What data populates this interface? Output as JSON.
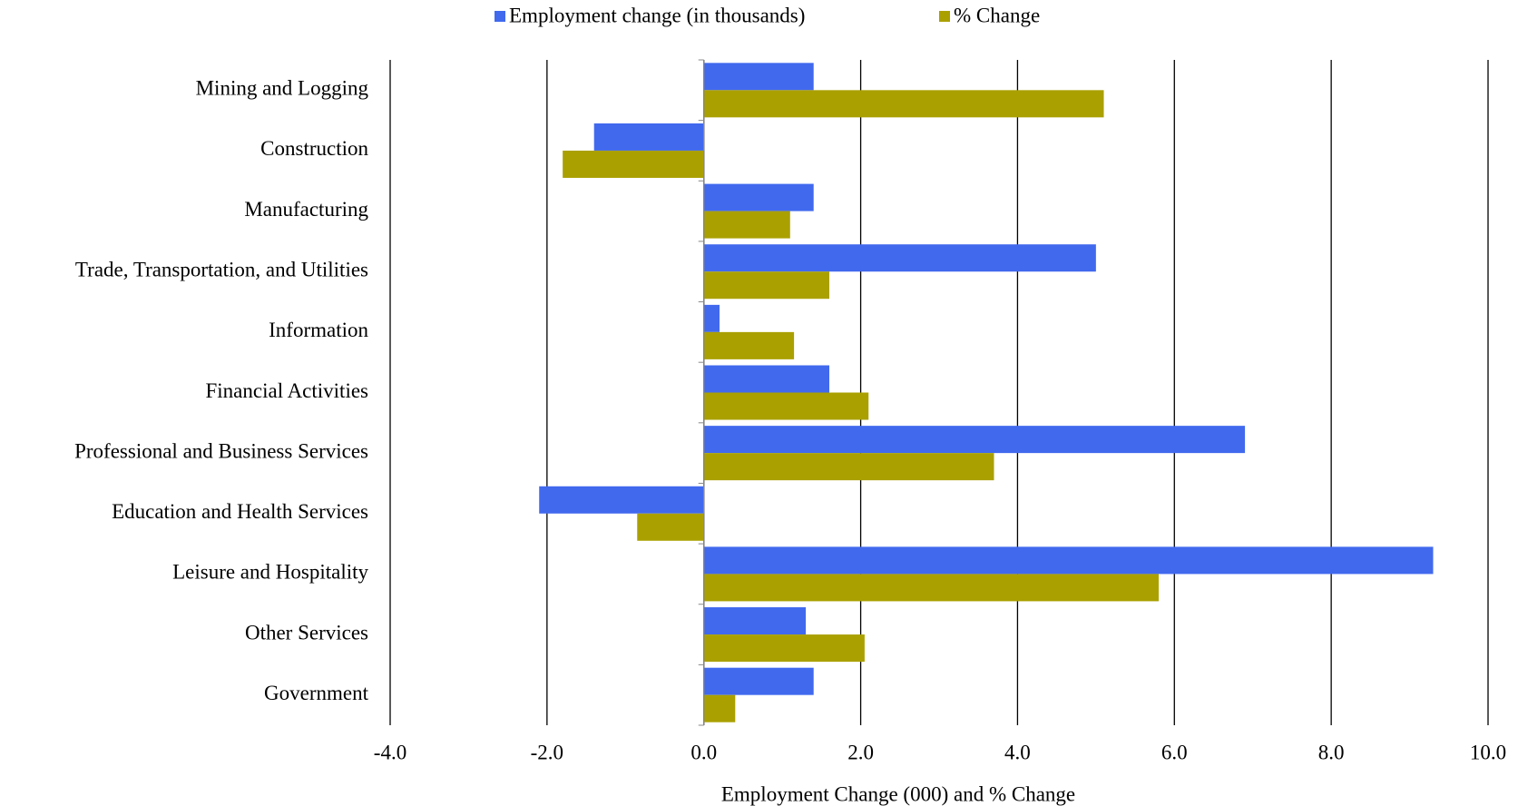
{
  "chart_data": {
    "type": "barh",
    "xlabel": "Employment  Change  (000) and % Change",
    "categories": [
      "Mining and Logging",
      "Construction",
      "Manufacturing",
      "Trade, Transportation, and Utilities",
      "Information",
      "Financial Activities",
      "Professional and Business Services",
      "Education and Health Services",
      "Leisure and Hospitality",
      "Other Services",
      "Government"
    ],
    "series": [
      {
        "name": "Employment change (in thousands)",
        "color": "#4169ee",
        "values": [
          1.4,
          -1.4,
          1.4,
          5.0,
          0.2,
          1.6,
          6.9,
          -2.1,
          9.3,
          1.3,
          1.4
        ]
      },
      {
        "name": "% Change",
        "color": "#aaa000",
        "values": [
          5.1,
          -1.8,
          1.1,
          1.6,
          1.15,
          2.1,
          3.7,
          -0.85,
          5.8,
          2.05,
          0.4
        ]
      }
    ],
    "xlim": [
      -4,
      10
    ],
    "xticks": [
      {
        "value": -4,
        "label": "-4.0"
      },
      {
        "value": -2,
        "label": "-2.0"
      },
      {
        "value": 0,
        "label": "0.0"
      },
      {
        "value": 2,
        "label": "2.0"
      },
      {
        "value": 4,
        "label": "4.0"
      },
      {
        "value": 6,
        "label": "6.0"
      },
      {
        "value": 8,
        "label": "8.0"
      },
      {
        "value": 10,
        "label": "10.0"
      }
    ],
    "grid": true,
    "legend": "top"
  }
}
